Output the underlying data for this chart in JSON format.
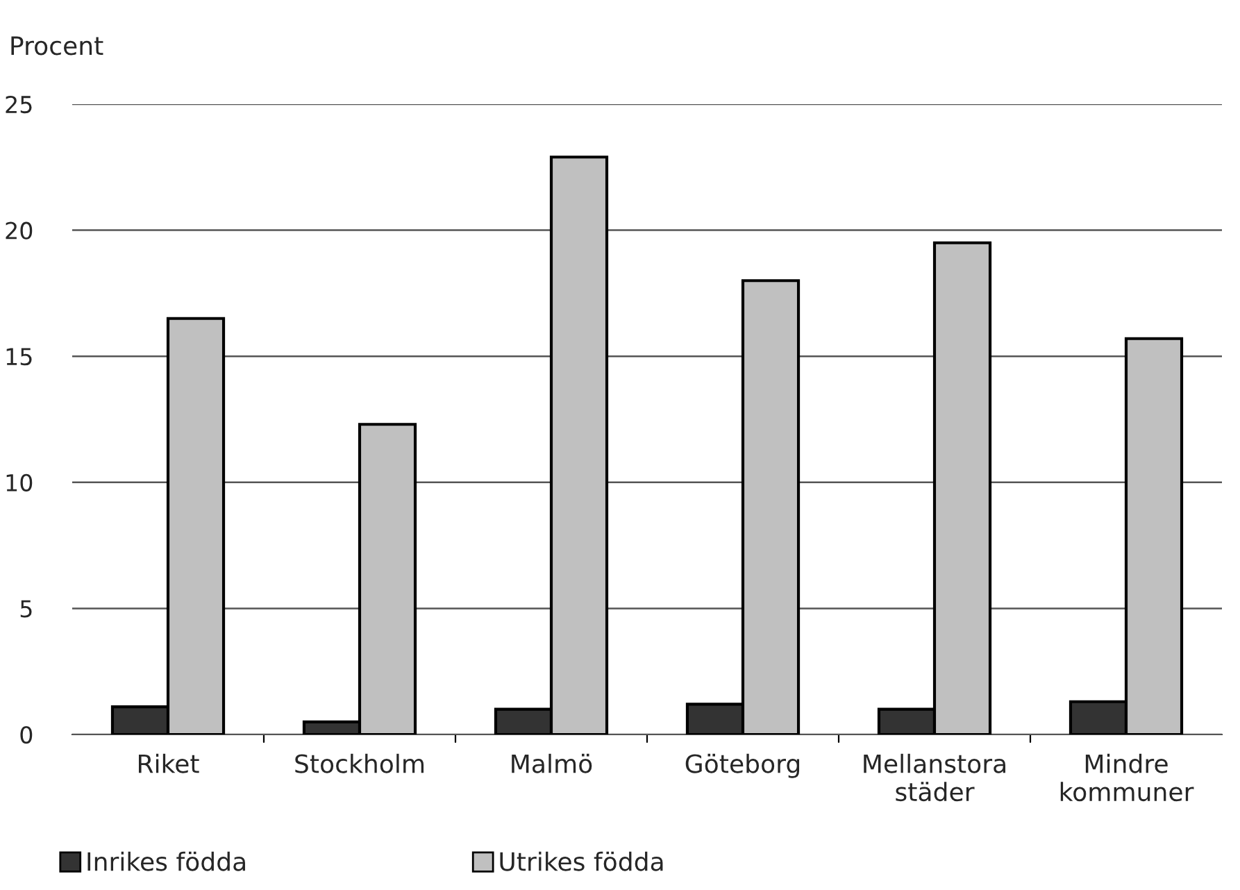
{
  "chart_data": {
    "type": "bar",
    "ylabel": "Procent",
    "categories": [
      "Riket",
      "Stockholm",
      "Malmö",
      "Göteborg",
      "Mellanstora\nstäder",
      "Mindre\nkommuner"
    ],
    "series": [
      {
        "name": "Inrikes födda",
        "color": "#333333",
        "values": [
          1.1,
          0.5,
          1.0,
          1.2,
          1.0,
          1.3
        ]
      },
      {
        "name": "Utrikes födda",
        "color": "#c0c0c0",
        "values": [
          16.5,
          12.3,
          22.9,
          18.0,
          19.5,
          15.7
        ]
      }
    ],
    "ylim": [
      0,
      25
    ],
    "yticks": [
      0,
      5,
      10,
      15,
      20,
      25
    ],
    "grid": "y",
    "legend": "bottom"
  }
}
